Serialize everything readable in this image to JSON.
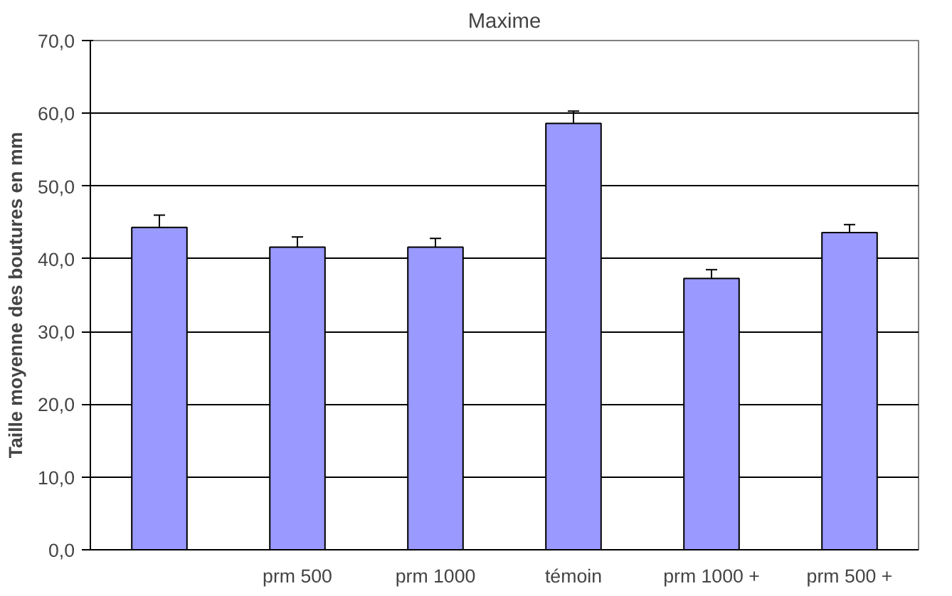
{
  "chart_data": {
    "type": "bar",
    "title": "Maxime",
    "ylabel": "Taille moyenne des boutures en mm",
    "categories": [
      null,
      "prm 500",
      "prm 1000",
      "témoin",
      "prm 1000 +",
      "prm 500 +"
    ],
    "values": [
      44.3,
      41.6,
      41.6,
      58.6,
      37.3,
      43.6
    ],
    "errors": [
      1.7,
      1.4,
      1.2,
      1.7,
      1.2,
      1.1
    ],
    "color": "#9999ff",
    "ylim": [
      0,
      70
    ],
    "yticks": [
      {
        "value": 0,
        "label": "0,0"
      },
      {
        "value": 10,
        "label": "10,0"
      },
      {
        "value": 20,
        "label": "20,0"
      },
      {
        "value": 30,
        "label": "30,0"
      },
      {
        "value": 40,
        "label": "40,0"
      },
      {
        "value": 50,
        "label": "50,0"
      },
      {
        "value": 60,
        "label": "60,0"
      },
      {
        "value": 70,
        "label": "70,0"
      }
    ],
    "grid": "y"
  }
}
